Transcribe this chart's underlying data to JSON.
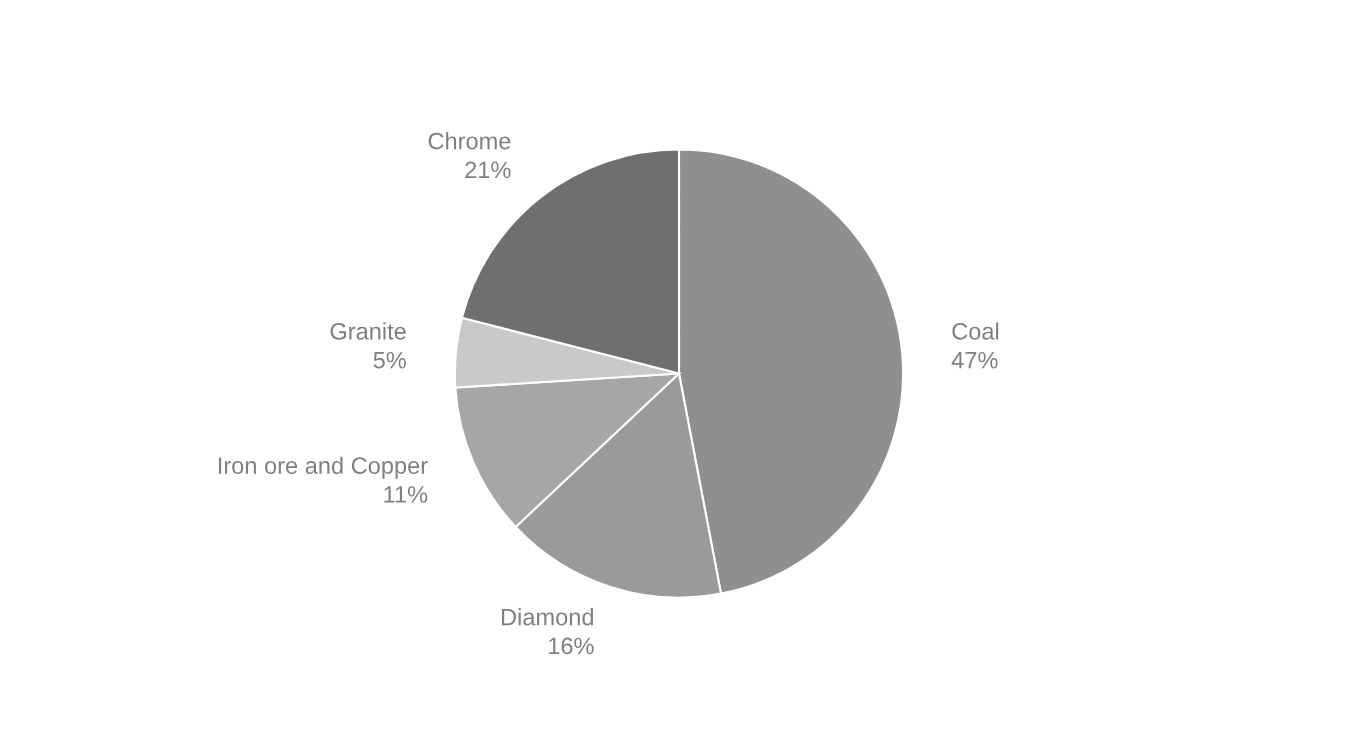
{
  "chart_data": {
    "type": "pie",
    "categories": [
      "Coal",
      "Diamond",
      "Iron ore and Copper",
      "Granite",
      "Chrome"
    ],
    "values": [
      47,
      16,
      11,
      5,
      21
    ],
    "value_labels": [
      "47%",
      "16%",
      "11%",
      "5%",
      "21%"
    ],
    "colors": [
      "#8f8f8f",
      "#9a9a9a",
      "#a6a6a6",
      "#c9c9c9",
      "#6f6f6f"
    ],
    "legend": false
  }
}
